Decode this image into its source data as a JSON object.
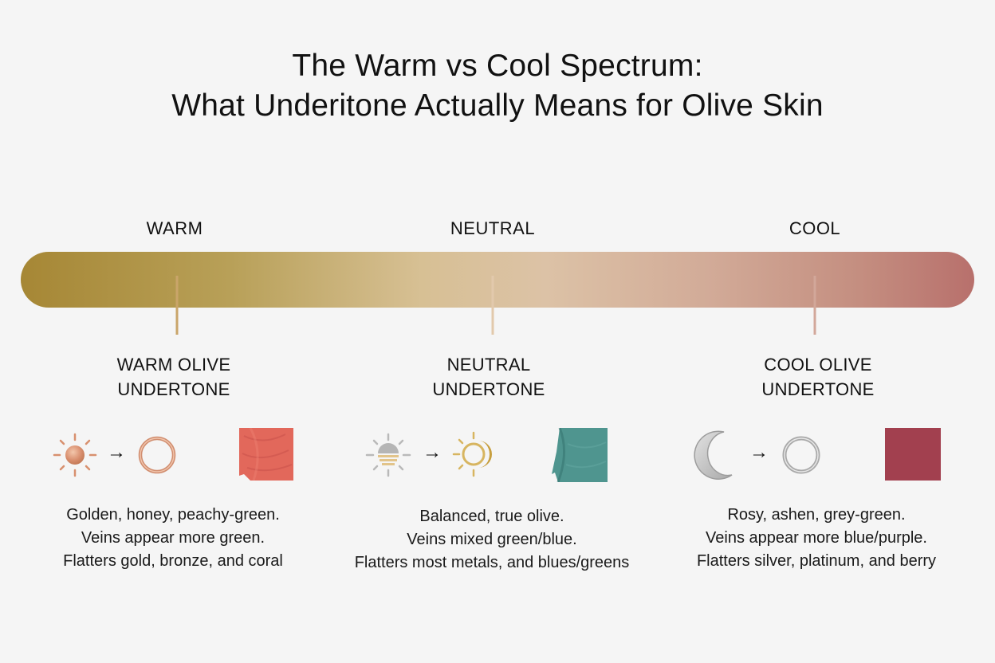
{
  "title": {
    "line1": "The Warm vs Cool Spectrum:",
    "line2": "What Underitone Actually Means for Olive Skin"
  },
  "spectrum": {
    "labels": [
      "WARM",
      "NEUTRAL",
      "COOL"
    ],
    "colors": {
      "warm": "#a68735",
      "neutral": "#dcc2a6",
      "cool": "#b8706c"
    }
  },
  "columns": [
    {
      "title_lines": [
        "WARM OLIVE",
        "UNDERTONE"
      ],
      "icons": [
        "sun-icon",
        "arrow-right-icon",
        "gold-ring-icon",
        "coral-fabric-swatch"
      ],
      "swatch_color": "#e0675a",
      "desc_lines": [
        "Golden, honey, peachy-green.",
        "Veins appear more green.",
        "Flatters gold, bronze, and coral"
      ]
    },
    {
      "title_lines": [
        "NEUTRAL",
        "UNDERTONE"
      ],
      "icons": [
        "sunset-icon",
        "arrow-right-icon",
        "sun-moon-icon",
        "teal-fabric-swatch"
      ],
      "swatch_color": "#4f958f",
      "desc_lines": [
        "Balanced, true olive.",
        "Veins mixed green/blue.",
        "Flatters most metals, and blues/greens"
      ]
    },
    {
      "title_lines": [
        "COOL OLIVE",
        "UNDERTONE"
      ],
      "icons": [
        "crescent-moon-icon",
        "arrow-right-icon",
        "silver-ring-icon",
        "berry-swatch"
      ],
      "swatch_color": "#a2404f",
      "desc_lines": [
        "Rosy, ashen, grey-green.",
        "Veins appear more blue/purple.",
        "Flatters silver, platinum, and berry"
      ]
    }
  ]
}
